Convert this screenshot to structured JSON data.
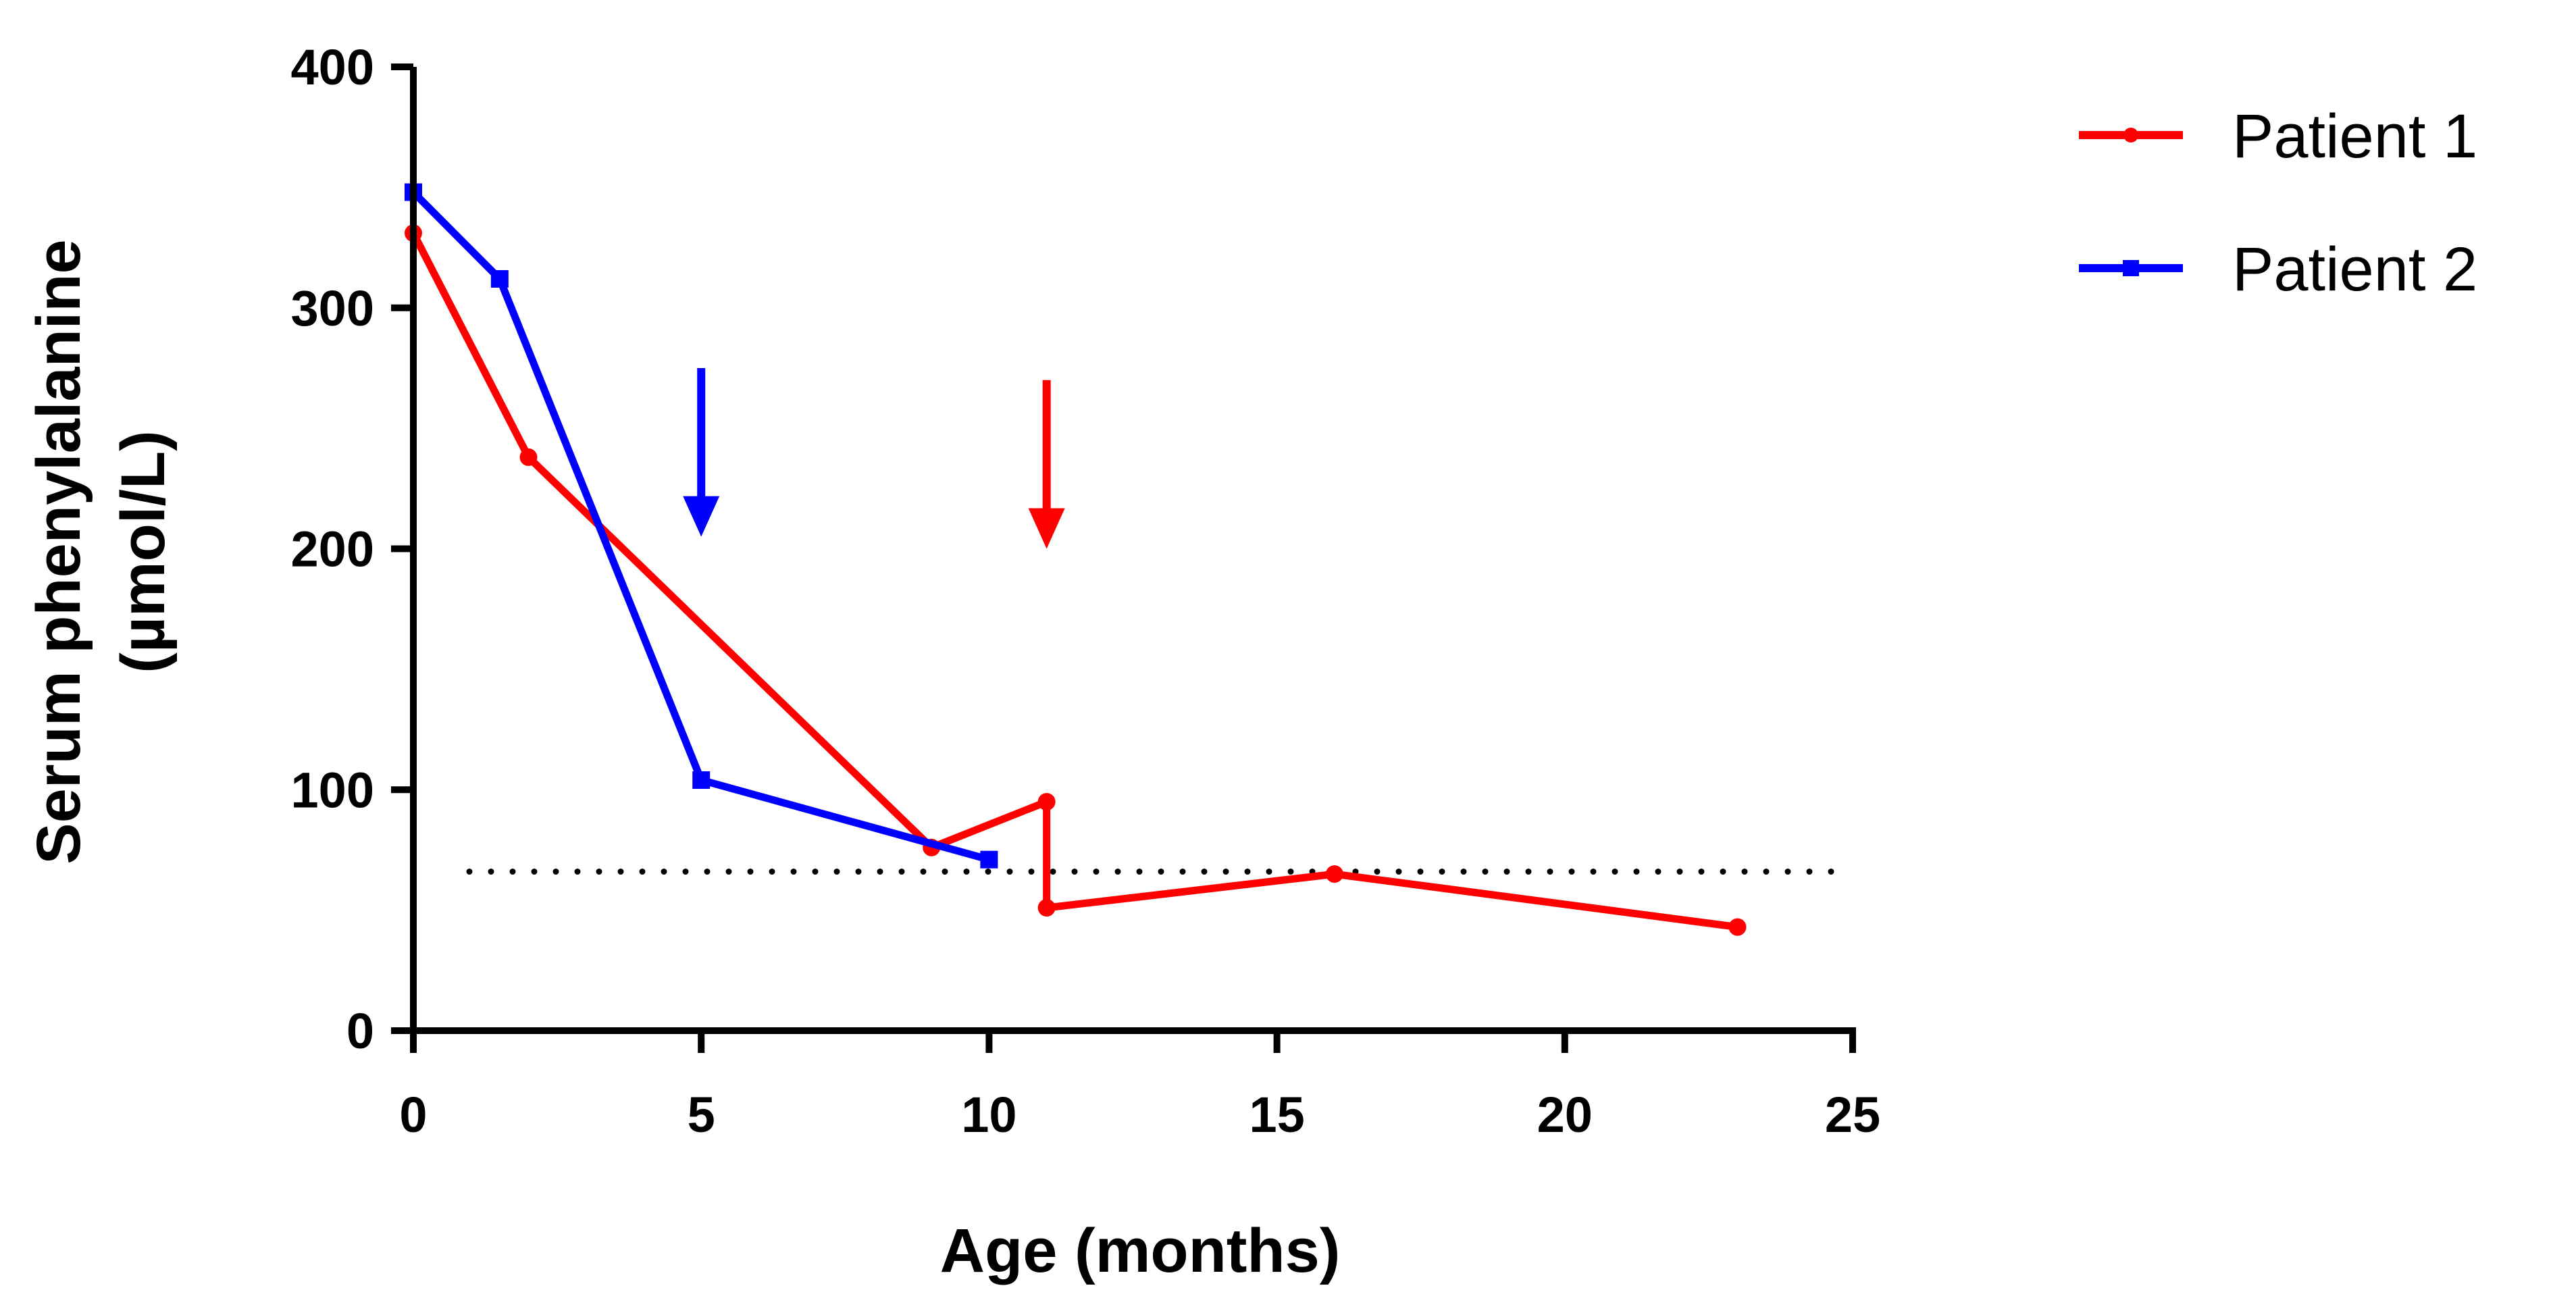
{
  "chart_data": {
    "type": "line",
    "title": "",
    "xlabel": "Age (months)",
    "ylabel_line1": "Serum phenylalanine",
    "ylabel_line2": "(µmol/L)",
    "xlim": [
      0,
      25
    ],
    "ylim": [
      0,
      400
    ],
    "xticks": [
      0,
      5,
      10,
      15,
      20,
      25
    ],
    "yticks": [
      0,
      100,
      200,
      300,
      400
    ],
    "xtick_labels": [
      "0",
      "5",
      "10",
      "15",
      "20",
      "25"
    ],
    "ytick_labels": [
      "0",
      "100",
      "200",
      "300",
      "400"
    ],
    "grid": false,
    "legend_position": "top-right",
    "reference_line": {
      "y": 66,
      "style": "dotted",
      "color": "#000000"
    },
    "series": [
      {
        "name": "Patient 1",
        "color": "#ff0000",
        "marker": "circle",
        "points": [
          [
            0,
            331
          ],
          [
            2,
            238
          ],
          [
            9,
            76
          ],
          [
            11,
            95
          ],
          [
            11,
            51
          ],
          [
            16,
            65
          ],
          [
            23,
            43
          ]
        ]
      },
      {
        "name": "Patient 2",
        "color": "#0000ff",
        "marker": "square",
        "points": [
          [
            0,
            348
          ],
          [
            1.5,
            312
          ],
          [
            5,
            104
          ],
          [
            10,
            71
          ]
        ]
      }
    ],
    "annotations": [
      {
        "type": "arrow-down",
        "x": 5,
        "y_top": 275,
        "y_bottom": 205,
        "color": "#0000ff"
      },
      {
        "type": "arrow-down",
        "x": 11,
        "y_top": 270,
        "y_bottom": 200,
        "color": "#ff0000"
      }
    ]
  }
}
